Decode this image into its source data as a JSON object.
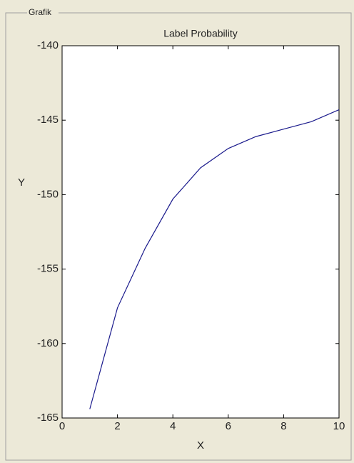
{
  "panel_title": "Grafik",
  "chart_data": {
    "type": "line",
    "title": "Label Probability",
    "x_label": "X",
    "y_label": "Y",
    "x": [
      1,
      2,
      3,
      4,
      5,
      6,
      7,
      8,
      9,
      10
    ],
    "values": [
      -164.4,
      -157.6,
      -153.6,
      -150.3,
      -148.2,
      -146.9,
      -146.1,
      -145.6,
      -145.1,
      -144.3
    ],
    "color": "#1a1a8c",
    "xlim": [
      0,
      10
    ],
    "xticks": [
      0,
      2,
      4,
      6,
      8,
      10
    ],
    "ylim": [
      -165,
      -140
    ],
    "yticks": [
      -165,
      -160,
      -155,
      -150,
      -145,
      -140
    ],
    "grid": false
  }
}
